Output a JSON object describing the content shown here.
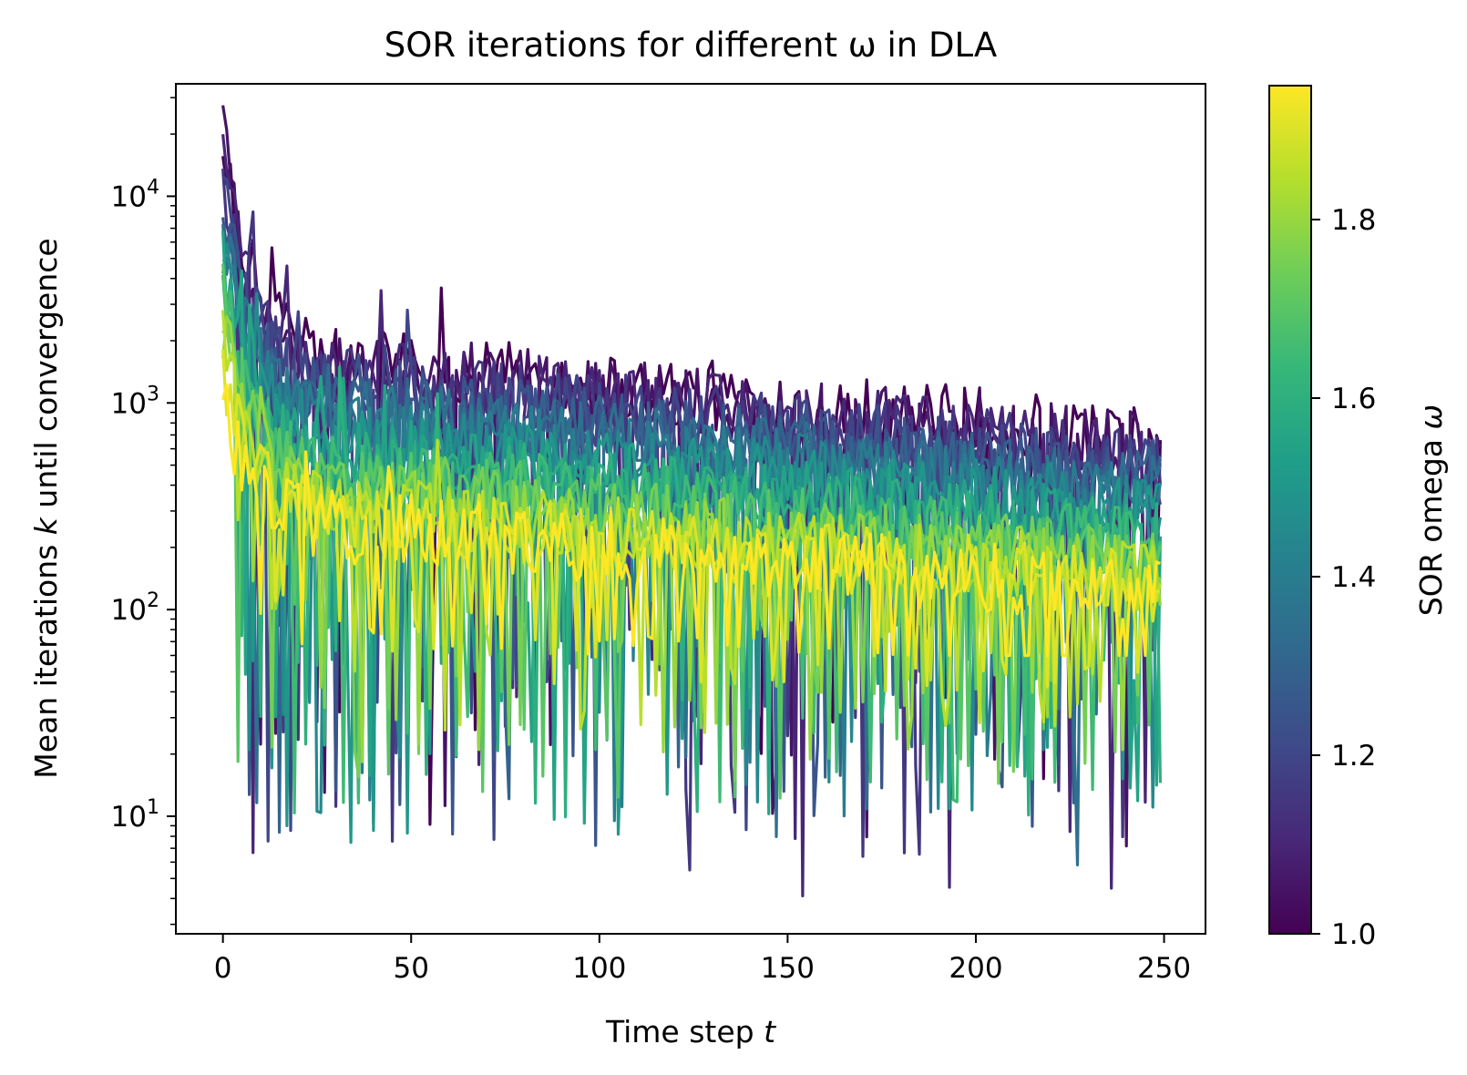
{
  "chart_data": {
    "type": "line",
    "title": "SOR iterations for different ω in DLA",
    "xlabel": "Time step t",
    "ylabel": "Mean iterations k until convergence",
    "x_ticks": [
      0,
      50,
      100,
      150,
      200,
      250
    ],
    "x_tick_labels": [
      "0",
      "50",
      "100",
      "150",
      "200",
      "250"
    ],
    "xlim": [
      -12.5,
      261
    ],
    "y_scale": "log",
    "ylim": [
      2.7,
      35000
    ],
    "y_tick_labels": [
      {
        "value": 10,
        "base": "10",
        "exp": "1"
      },
      {
        "value": 100,
        "base": "10",
        "exp": "2"
      },
      {
        "value": 1000,
        "base": "10",
        "exp": "3"
      },
      {
        "value": 10000,
        "base": "10",
        "exp": "4"
      }
    ],
    "grid": false,
    "colormap": "viridis",
    "colorbar": {
      "label": "SOR omega ω",
      "range": [
        1.0,
        1.95
      ],
      "ticks": [
        1.0,
        1.2,
        1.4,
        1.6,
        1.8
      ],
      "tick_labels": [
        "1.0",
        "1.2",
        "1.4",
        "1.6",
        "1.8"
      ]
    },
    "t_range": [
      0,
      249
    ],
    "series_summary": [
      {
        "omega": 1.0,
        "start": 23000,
        "t50": 1500,
        "end": 650,
        "dip_min": 5
      },
      {
        "omega": 1.05,
        "start": 19000,
        "t50": 1400,
        "end": 600,
        "dip_min": 7
      },
      {
        "omega": 1.1,
        "start": 16000,
        "t50": 1300,
        "end": 560,
        "dip_min": 4
      },
      {
        "omega": 1.15,
        "start": 14000,
        "t50": 1200,
        "end": 520,
        "dip_min": 5
      },
      {
        "omega": 1.2,
        "start": 12000,
        "t50": 1100,
        "end": 480,
        "dip_min": 6
      },
      {
        "omega": 1.25,
        "start": 10500,
        "t50": 1000,
        "end": 440,
        "dip_min": 7
      },
      {
        "omega": 1.3,
        "start": 9000,
        "t50": 900,
        "end": 400,
        "dip_min": 7
      },
      {
        "omega": 1.35,
        "start": 8000,
        "t50": 820,
        "end": 370,
        "dip_min": 5
      },
      {
        "omega": 1.4,
        "start": 7000,
        "t50": 740,
        "end": 340,
        "dip_min": 8
      },
      {
        "omega": 1.45,
        "start": 6200,
        "t50": 660,
        "end": 310,
        "dip_min": 10
      },
      {
        "omega": 1.5,
        "start": 5500,
        "t50": 600,
        "end": 280,
        "dip_min": 6
      },
      {
        "omega": 1.55,
        "start": 4800,
        "t50": 540,
        "end": 250,
        "dip_min": 8
      },
      {
        "omega": 1.6,
        "start": 4200,
        "t50": 480,
        "end": 220,
        "dip_min": 8
      },
      {
        "omega": 1.65,
        "start": 3700,
        "t50": 430,
        "end": 200,
        "dip_min": 10
      },
      {
        "omega": 1.7,
        "start": 3200,
        "t50": 390,
        "end": 180,
        "dip_min": 12
      },
      {
        "omega": 1.75,
        "start": 2800,
        "t50": 350,
        "end": 165,
        "dip_min": 14
      },
      {
        "omega": 1.8,
        "start": 2400,
        "t50": 320,
        "end": 150,
        "dip_min": 18
      },
      {
        "omega": 1.85,
        "start": 2000,
        "t50": 290,
        "end": 140,
        "dip_min": 25
      },
      {
        "omega": 1.9,
        "start": 1500,
        "t50": 260,
        "end": 130,
        "dip_min": 40
      },
      {
        "omega": 1.95,
        "start": 1000,
        "t50": 240,
        "end": 120,
        "dip_min": 60
      }
    ]
  }
}
